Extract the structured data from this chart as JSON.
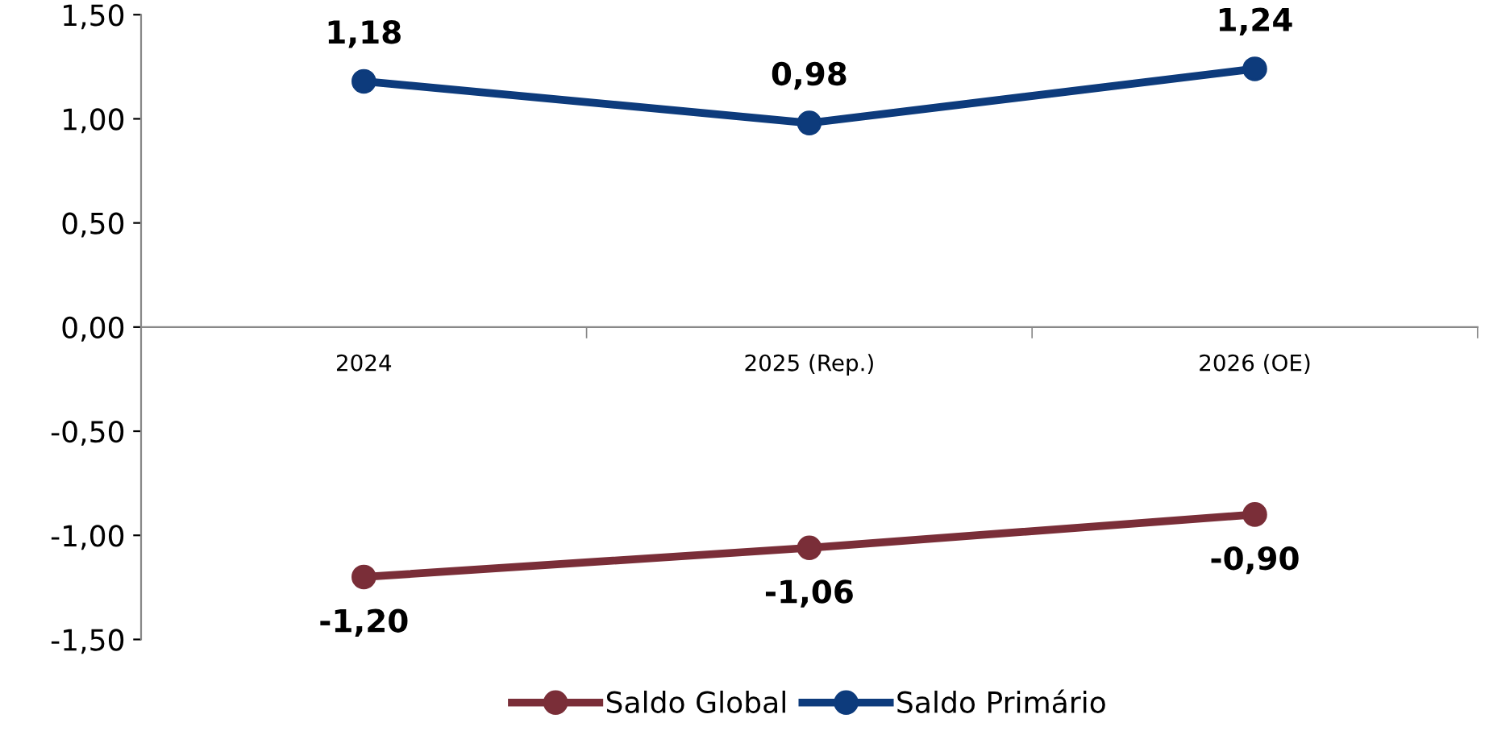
{
  "chart_data": {
    "type": "line",
    "categories": [
      "2024",
      "2025 (Rep.)",
      "2026 (OE)"
    ],
    "series": [
      {
        "name": "Saldo Global",
        "color": "#7a2e38",
        "values": [
          -1.2,
          -1.06,
          -0.9
        ],
        "value_labels": [
          "-1,20",
          "-1,06",
          "-0,90"
        ]
      },
      {
        "name": "Saldo Primário",
        "color": "#0d3b7c",
        "values": [
          1.18,
          0.98,
          1.24
        ],
        "value_labels": [
          "1,18",
          "0,98",
          "1,24"
        ]
      }
    ],
    "ylim": [
      -1.5,
      1.5
    ],
    "yticks": [
      {
        "value": -1.5,
        "label": "-1,50"
      },
      {
        "value": -1.0,
        "label": "-1,00"
      },
      {
        "value": -0.5,
        "label": "-0,50"
      },
      {
        "value": 0,
        "label": "0,00"
      },
      {
        "value": 0.5,
        "label": "0,50"
      },
      {
        "value": 1.0,
        "label": "1,00"
      },
      {
        "value": 1.5,
        "label": "1,50"
      }
    ],
    "grid": false,
    "legend": "bottom",
    "marker": "circle",
    "line_style": "solid"
  }
}
